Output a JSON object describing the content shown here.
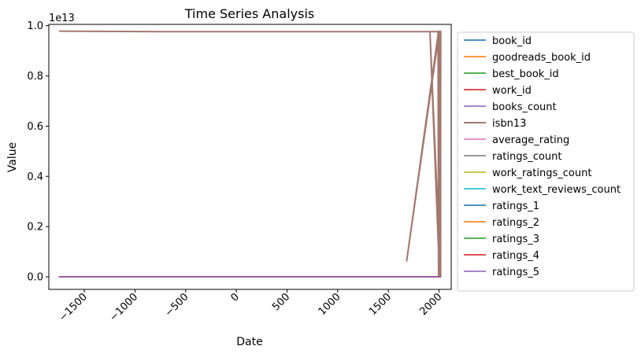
{
  "chart_data": {
    "type": "line",
    "title": "Time Series Analysis",
    "xlabel": "Date",
    "ylabel": "Value",
    "y_offset_label": "1e13",
    "xlim": [
      -1850,
      2120
    ],
    "ylim": [
      -0.05,
      1.005
    ],
    "x_ticks": [
      -1500,
      -1000,
      -500,
      0,
      500,
      1000,
      1500,
      2000
    ],
    "x_tick_labels": [
      "−1500",
      "−1000",
      "−500",
      "0",
      "500",
      "1000",
      "1500",
      "2000"
    ],
    "y_ticks": [
      0.0,
      0.2,
      0.4,
      0.6,
      0.8,
      1.0
    ],
    "y_tick_labels": [
      "0.0",
      "0.2",
      "0.4",
      "0.6",
      "0.8",
      "1.0"
    ],
    "grid": false,
    "legend_position": "outside right",
    "series": [
      {
        "name": "book_id",
        "color": "#1f77b4",
        "x": [
          -1750,
          2017
        ],
        "y": [
          0.0,
          0.0
        ]
      },
      {
        "name": "goodreads_book_id",
        "color": "#ff7f0e",
        "x": [
          -1750,
          2017
        ],
        "y": [
          0.0,
          0.0
        ]
      },
      {
        "name": "best_book_id",
        "color": "#2ca02c",
        "x": [
          -1750,
          2017
        ],
        "y": [
          0.0,
          0.0
        ]
      },
      {
        "name": "work_id",
        "color": "#d62728",
        "x": [
          -1750,
          2017
        ],
        "y": [
          0.0,
          0.0
        ]
      },
      {
        "name": "books_count",
        "color": "#9467bd",
        "x": [
          -1750,
          2017
        ],
        "y": [
          0.0,
          0.0
        ]
      },
      {
        "name": "isbn13",
        "color": "#8c564b",
        "x": [
          -1750,
          -750,
          1990,
          1995,
          1998,
          2000,
          2002,
          1680,
          1995,
          2004,
          2006,
          2008,
          2010,
          2012,
          2014,
          2016,
          1910,
          2005,
          2003,
          2011,
          2013,
          2015,
          2017
        ],
        "y": [
          0.978,
          0.976,
          0.976,
          0.0,
          0.978,
          0.02,
          0.976,
          0.063,
          0.978,
          0.05,
          0.976,
          0.3,
          0.976,
          0.1,
          0.978,
          0.0,
          0.976,
          0.0,
          0.976,
          0.12,
          0.976,
          0.5,
          0.976
        ]
      },
      {
        "name": "average_rating",
        "color": "#e377c2",
        "x": [
          -1750,
          2017
        ],
        "y": [
          0.0,
          0.0
        ]
      },
      {
        "name": "ratings_count",
        "color": "#7f7f7f",
        "x": [
          -1750,
          2017
        ],
        "y": [
          0.0,
          0.0
        ]
      },
      {
        "name": "work_ratings_count",
        "color": "#bcbd22",
        "x": [
          -1750,
          2017
        ],
        "y": [
          0.0,
          0.0
        ]
      },
      {
        "name": "work_text_reviews_count",
        "color": "#17becf",
        "x": [
          -1750,
          2017
        ],
        "y": [
          0.0,
          0.0
        ]
      },
      {
        "name": "ratings_1",
        "color": "#1f77b4",
        "x": [
          -1750,
          2017
        ],
        "y": [
          0.0,
          0.0
        ]
      },
      {
        "name": "ratings_2",
        "color": "#ff7f0e",
        "x": [
          -1750,
          2017
        ],
        "y": [
          0.0,
          0.0
        ]
      },
      {
        "name": "ratings_3",
        "color": "#2ca02c",
        "x": [
          -1750,
          2017
        ],
        "y": [
          0.0,
          0.0
        ]
      },
      {
        "name": "ratings_4",
        "color": "#d62728",
        "x": [
          -1750,
          2017
        ],
        "y": [
          0.0,
          0.0
        ]
      },
      {
        "name": "ratings_5",
        "color": "#9467bd",
        "x": [
          -1750,
          2017
        ],
        "y": [
          0.0,
          0.0
        ]
      }
    ]
  }
}
